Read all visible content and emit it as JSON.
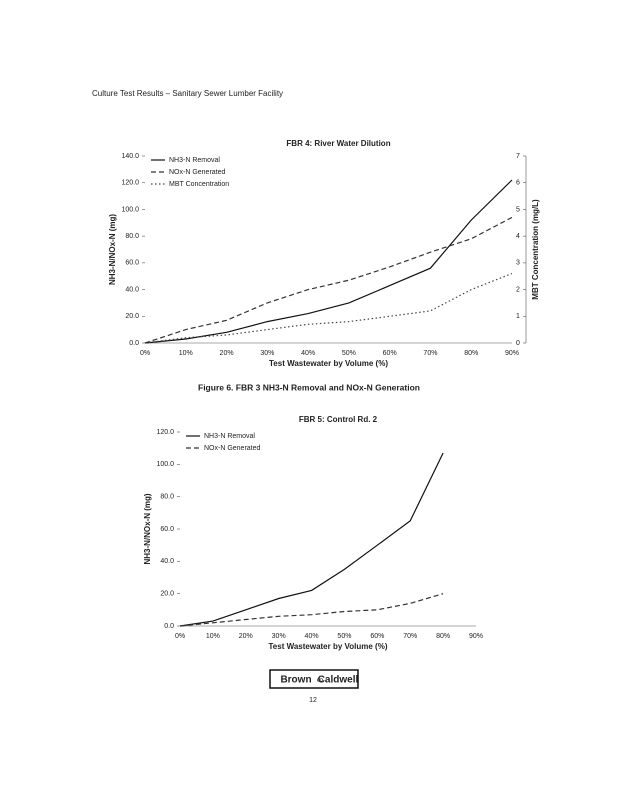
{
  "header": {
    "title": "Culture Test Results – Sanitary Sewer Lumber Facility"
  },
  "chart_data": [
    {
      "type": "line",
      "title": "FBR 4: River Water Dilution",
      "x_label": "Test Wastewater by Volume (%)",
      "y_label": "NH3-N/NOx-N (mg)",
      "y2_label": "MBT Concentration (mg/L)",
      "categories": [
        "0%",
        "10%",
        "20%",
        "30%",
        "40%",
        "50%",
        "60%",
        "70%",
        "80%",
        "90%"
      ],
      "ylim": [
        0,
        140
      ],
      "yticks": [
        {
          "value": 0,
          "label": "0.0"
        },
        {
          "value": 20,
          "label": "20.0"
        },
        {
          "value": 40,
          "label": "40.0"
        },
        {
          "value": 60,
          "label": "60.0"
        },
        {
          "value": 80,
          "label": "80.0"
        },
        {
          "value": 100,
          "label": "100.0"
        },
        {
          "value": 120,
          "label": "120.0"
        },
        {
          "value": 140,
          "label": "140.0"
        }
      ],
      "y2lim": [
        0,
        7
      ],
      "y2ticks": [
        0,
        1,
        2,
        3,
        4,
        5,
        6,
        7
      ],
      "legend": "top-left",
      "series": [
        {
          "name": "NH3-N Removal",
          "color": "#111111",
          "dash": "solid",
          "values": [
            0,
            3,
            8,
            16,
            22,
            30,
            43,
            56,
            92,
            122
          ]
        },
        {
          "name": "NOx-N Generated",
          "color": "#333333",
          "dash": "dashed",
          "values": [
            0,
            10,
            17,
            30,
            40,
            47,
            57,
            68,
            78,
            94
          ]
        },
        {
          "name": "MBT Concentration",
          "color": "#444444",
          "dash": "dotted",
          "axis": "y2",
          "values": [
            0,
            0.2,
            0.3,
            0.5,
            0.7,
            0.8,
            1.0,
            1.2,
            2.0,
            2.6
          ]
        }
      ]
    },
    {
      "type": "line",
      "title": "FBR 5: Control Rd. 2",
      "x_label": "Test Wastewater by Volume (%)",
      "y_label": "NH3-N/NOx-N (mg)",
      "categories": [
        "0%",
        "10%",
        "20%",
        "30%",
        "40%",
        "50%",
        "60%",
        "70%",
        "80%",
        "90%"
      ],
      "ylim": [
        0,
        120
      ],
      "yticks": [
        {
          "value": 0,
          "label": "0.0"
        },
        {
          "value": 20,
          "label": "20.0"
        },
        {
          "value": 40,
          "label": "40.0"
        },
        {
          "value": 60,
          "label": "60.0"
        },
        {
          "value": 80,
          "label": "80.0"
        },
        {
          "value": 100,
          "label": "100.0"
        },
        {
          "value": 120,
          "label": "120.0"
        }
      ],
      "legend": "top-left",
      "series": [
        {
          "name": "NH3-N Removal",
          "color": "#111111",
          "dash": "solid",
          "values": [
            0,
            3,
            10,
            17,
            22,
            35,
            50,
            65,
            107,
            null
          ]
        },
        {
          "name": "NOx-N Generated",
          "color": "#333333",
          "dash": "dashed",
          "values": [
            0,
            2,
            4,
            6,
            7,
            9,
            10,
            14,
            20,
            null
          ]
        }
      ]
    }
  ],
  "caption": "Figure 6. FBR 3 NH3-N Removal and NOx-N Generation",
  "logo": {
    "left": "Brown",
    "right": "Caldwell"
  },
  "page_number": "12"
}
